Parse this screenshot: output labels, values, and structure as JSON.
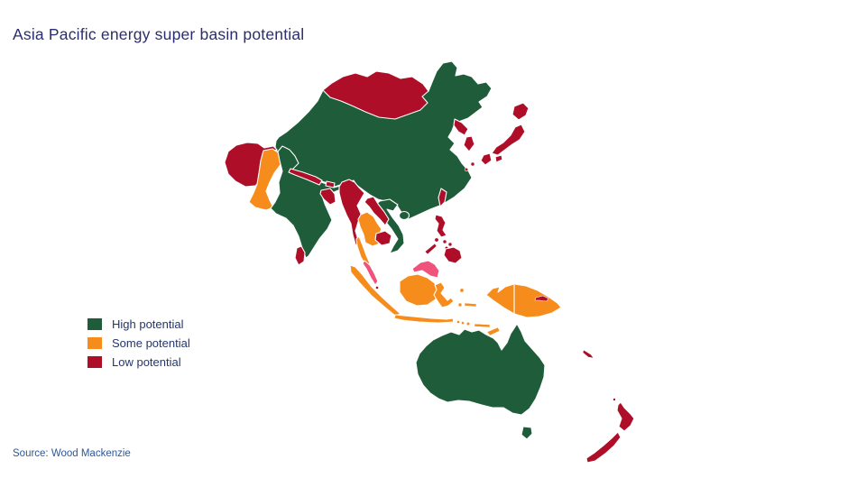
{
  "title": "Asia Pacific energy super basin potential",
  "source": "Source: Wood Mackenzie",
  "legend": {
    "items": [
      {
        "key": "high",
        "label": "High potential",
        "color": "#1F5C3A"
      },
      {
        "key": "some",
        "label": "Some potential",
        "color": "#F68C1C"
      },
      {
        "key": "low",
        "label": "Low potential",
        "color": "#AF0E28"
      }
    ]
  },
  "extra_colors": {
    "pink": "#F0527C",
    "map_border": "#FFFFFF"
  },
  "map_data": {
    "type": "choropleth",
    "regions": [
      {
        "id": "china",
        "name": "China",
        "category": "high"
      },
      {
        "id": "hainan",
        "name": "Hainan (China)",
        "category": "high"
      },
      {
        "id": "india",
        "name": "India",
        "category": "high"
      },
      {
        "id": "vietnam",
        "name": "Vietnam",
        "category": "high"
      },
      {
        "id": "australia",
        "name": "Australia",
        "category": "high"
      },
      {
        "id": "pakistan",
        "name": "Pakistan",
        "category": "some"
      },
      {
        "id": "thailand",
        "name": "Thailand",
        "category": "some"
      },
      {
        "id": "indonesia",
        "name": "Indonesia",
        "category": "some"
      },
      {
        "id": "new-guinea",
        "name": "Papua / Papua New Guinea",
        "category": "some"
      },
      {
        "id": "mongolia",
        "name": "Mongolia",
        "category": "low"
      },
      {
        "id": "afghanistan",
        "name": "Afghanistan",
        "category": "low"
      },
      {
        "id": "nepal",
        "name": "Nepal",
        "category": "low"
      },
      {
        "id": "bhutan",
        "name": "Bhutan",
        "category": "low"
      },
      {
        "id": "bangladesh",
        "name": "Bangladesh",
        "category": "low"
      },
      {
        "id": "sri-lanka",
        "name": "Sri Lanka",
        "category": "low"
      },
      {
        "id": "myanmar",
        "name": "Myanmar",
        "category": "low"
      },
      {
        "id": "laos",
        "name": "Laos",
        "category": "low"
      },
      {
        "id": "cambodia",
        "name": "Cambodia",
        "category": "low"
      },
      {
        "id": "north-korea",
        "name": "North Korea",
        "category": "low"
      },
      {
        "id": "south-korea",
        "name": "South Korea",
        "category": "low"
      },
      {
        "id": "japan",
        "name": "Japan",
        "category": "low"
      },
      {
        "id": "taiwan",
        "name": "Taiwan",
        "category": "low"
      },
      {
        "id": "philippines",
        "name": "Philippines",
        "category": "low"
      },
      {
        "id": "singapore",
        "name": "Singapore",
        "category": "low"
      },
      {
        "id": "new-britain",
        "name": "New Britain (PNG)",
        "category": "low"
      },
      {
        "id": "new-caledonia",
        "name": "New Caledonia",
        "category": "low"
      },
      {
        "id": "new-zealand",
        "name": "New Zealand",
        "category": "low"
      },
      {
        "id": "malaysia",
        "name": "Malaysia",
        "category": "pink"
      }
    ]
  }
}
